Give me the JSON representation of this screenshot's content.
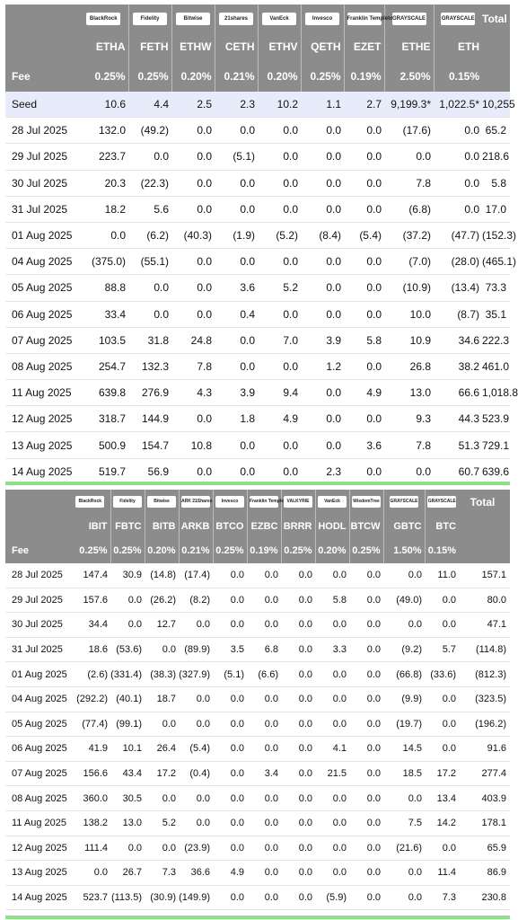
{
  "eth_table": {
    "issuers": [
      "BlackRock",
      "Fidelity",
      "Bitwise",
      "21shares",
      "VanEck",
      "Invesco",
      "Franklin Templeton",
      "GRAYSCALE",
      "GRAYSCALE"
    ],
    "total_label": "Total",
    "tickers": [
      "ETHA",
      "FETH",
      "ETHW",
      "CETH",
      "ETHV",
      "QETH",
      "EZET",
      "ETHE",
      "ETH"
    ],
    "fee_label": "Fee",
    "fees": [
      "0.25%",
      "0.25%",
      "0.20%",
      "0.21%",
      "0.20%",
      "0.25%",
      "0.19%",
      "2.50%",
      "0.15%"
    ],
    "rows": [
      {
        "date": "Seed",
        "values": [
          "10.6",
          "4.4",
          "2.5",
          "2.3",
          "10.2",
          "1.1",
          "2.7",
          "9,199.3*",
          "1,022.5*"
        ],
        "total": "10,255"
      },
      {
        "date": "28 Jul 2025",
        "values": [
          "132.0",
          "(49.2)",
          "0.0",
          "0.0",
          "0.0",
          "0.0",
          "0.0",
          "(17.6)",
          "0.0"
        ],
        "total": "65.2"
      },
      {
        "date": "29 Jul 2025",
        "values": [
          "223.7",
          "0.0",
          "0.0",
          "(5.1)",
          "0.0",
          "0.0",
          "0.0",
          "0.0",
          "0.0"
        ],
        "total": "218.6"
      },
      {
        "date": "30 Jul 2025",
        "values": [
          "20.3",
          "(22.3)",
          "0.0",
          "0.0",
          "0.0",
          "0.0",
          "0.0",
          "7.8",
          "0.0"
        ],
        "total": "5.8"
      },
      {
        "date": "31 Jul 2025",
        "values": [
          "18.2",
          "5.6",
          "0.0",
          "0.0",
          "0.0",
          "0.0",
          "0.0",
          "(6.8)",
          "0.0"
        ],
        "total": "17.0"
      },
      {
        "date": "01 Aug 2025",
        "values": [
          "0.0",
          "(6.2)",
          "(40.3)",
          "(1.9)",
          "(5.2)",
          "(8.4)",
          "(5.4)",
          "(37.2)",
          "(47.7)"
        ],
        "total": "(152.3)"
      },
      {
        "date": "04 Aug 2025",
        "values": [
          "(375.0)",
          "(55.1)",
          "0.0",
          "0.0",
          "0.0",
          "0.0",
          "0.0",
          "(7.0)",
          "(28.0)"
        ],
        "total": "(465.1)"
      },
      {
        "date": "05 Aug 2025",
        "values": [
          "88.8",
          "0.0",
          "0.0",
          "3.6",
          "5.2",
          "0.0",
          "0.0",
          "(10.9)",
          "(13.4)"
        ],
        "total": "73.3"
      },
      {
        "date": "06 Aug 2025",
        "values": [
          "33.4",
          "0.0",
          "0.0",
          "0.4",
          "0.0",
          "0.0",
          "0.0",
          "10.0",
          "(8.7)"
        ],
        "total": "35.1"
      },
      {
        "date": "07 Aug 2025",
        "values": [
          "103.5",
          "31.8",
          "24.8",
          "0.0",
          "7.0",
          "3.9",
          "5.8",
          "10.9",
          "34.6"
        ],
        "total": "222.3"
      },
      {
        "date": "08 Aug 2025",
        "values": [
          "254.7",
          "132.3",
          "7.8",
          "0.0",
          "0.0",
          "1.2",
          "0.0",
          "26.8",
          "38.2"
        ],
        "total": "461.0"
      },
      {
        "date": "11 Aug 2025",
        "values": [
          "639.8",
          "276.9",
          "4.3",
          "3.9",
          "9.4",
          "0.0",
          "4.9",
          "13.0",
          "66.6"
        ],
        "total": "1,018.8"
      },
      {
        "date": "12 Aug 2025",
        "values": [
          "318.7",
          "144.9",
          "0.0",
          "1.8",
          "4.9",
          "0.0",
          "0.0",
          "9.3",
          "44.3"
        ],
        "total": "523.9"
      },
      {
        "date": "13 Aug 2025",
        "values": [
          "500.9",
          "154.7",
          "10.8",
          "0.0",
          "0.0",
          "0.0",
          "3.6",
          "7.8",
          "51.3"
        ],
        "total": "729.1"
      },
      {
        "date": "14 Aug 2025",
        "values": [
          "519.7",
          "56.9",
          "0.0",
          "0.0",
          "0.0",
          "2.3",
          "0.0",
          "0.0",
          "60.7"
        ],
        "total": "639.6"
      }
    ]
  },
  "btc_table": {
    "issuers": [
      "BlackRock",
      "Fidelity",
      "Bitwise",
      "ARK 21Shares",
      "Invesco",
      "Franklin Templeton",
      "VALKYRIE",
      "VanEck",
      "WisdomTree",
      "GRAYSCALE",
      "GRAYSCALE"
    ],
    "total_label": "Total",
    "tickers": [
      "IBIT",
      "FBTC",
      "BITB",
      "ARKB",
      "BTCO",
      "EZBC",
      "BRRR",
      "HODL",
      "BTCW",
      "GBTC",
      "BTC"
    ],
    "fee_label": "Fee",
    "fees": [
      "0.25%",
      "0.25%",
      "0.20%",
      "0.21%",
      "0.25%",
      "0.19%",
      "0.25%",
      "0.20%",
      "0.25%",
      "1.50%",
      "0.15%"
    ],
    "rows": [
      {
        "date": "28 Jul 2025",
        "values": [
          "147.4",
          "30.9",
          "(14.8)",
          "(17.4)",
          "0.0",
          "0.0",
          "0.0",
          "0.0",
          "0.0",
          "0.0",
          "11.0"
        ],
        "total": "157.1"
      },
      {
        "date": "29 Jul 2025",
        "values": [
          "157.6",
          "0.0",
          "(26.2)",
          "(8.2)",
          "0.0",
          "0.0",
          "0.0",
          "5.8",
          "0.0",
          "(49.0)",
          "0.0"
        ],
        "total": "80.0"
      },
      {
        "date": "30 Jul 2025",
        "values": [
          "34.4",
          "0.0",
          "12.7",
          "0.0",
          "0.0",
          "0.0",
          "0.0",
          "0.0",
          "0.0",
          "0.0",
          "0.0"
        ],
        "total": "47.1"
      },
      {
        "date": "31 Jul 2025",
        "values": [
          "18.6",
          "(53.6)",
          "0.0",
          "(89.9)",
          "3.5",
          "6.8",
          "0.0",
          "3.3",
          "0.0",
          "(9.2)",
          "5.7"
        ],
        "total": "(114.8)"
      },
      {
        "date": "01 Aug 2025",
        "values": [
          "(2.6)",
          "(331.4)",
          "(38.3)",
          "(327.9)",
          "(5.1)",
          "(6.6)",
          "0.0",
          "0.0",
          "0.0",
          "(66.8)",
          "(33.6)"
        ],
        "total": "(812.3)"
      },
      {
        "date": "04 Aug 2025",
        "values": [
          "(292.2)",
          "(40.1)",
          "18.7",
          "0.0",
          "0.0",
          "0.0",
          "0.0",
          "0.0",
          "0.0",
          "(9.9)",
          "0.0"
        ],
        "total": "(323.5)"
      },
      {
        "date": "05 Aug 2025",
        "values": [
          "(77.4)",
          "(99.1)",
          "0.0",
          "0.0",
          "0.0",
          "0.0",
          "0.0",
          "0.0",
          "0.0",
          "(19.7)",
          "0.0"
        ],
        "total": "(196.2)"
      },
      {
        "date": "06 Aug 2025",
        "values": [
          "41.9",
          "10.1",
          "26.4",
          "(5.4)",
          "0.0",
          "0.0",
          "0.0",
          "4.1",
          "0.0",
          "14.5",
          "0.0"
        ],
        "total": "91.6"
      },
      {
        "date": "07 Aug 2025",
        "values": [
          "156.6",
          "43.4",
          "17.2",
          "(0.4)",
          "0.0",
          "3.4",
          "0.0",
          "21.5",
          "0.0",
          "18.5",
          "17.2"
        ],
        "total": "277.4"
      },
      {
        "date": "08 Aug 2025",
        "values": [
          "360.0",
          "30.5",
          "0.0",
          "0.0",
          "0.0",
          "0.0",
          "0.0",
          "0.0",
          "0.0",
          "0.0",
          "13.4"
        ],
        "total": "403.9"
      },
      {
        "date": "11 Aug 2025",
        "values": [
          "138.2",
          "13.0",
          "5.2",
          "0.0",
          "0.0",
          "0.0",
          "0.0",
          "0.0",
          "0.0",
          "7.5",
          "14.2"
        ],
        "total": "178.1"
      },
      {
        "date": "12 Aug 2025",
        "values": [
          "111.4",
          "0.0",
          "0.0",
          "(23.9)",
          "0.0",
          "0.0",
          "0.0",
          "0.0",
          "0.0",
          "(21.6)",
          "0.0"
        ],
        "total": "65.9"
      },
      {
        "date": "13 Aug 2025",
        "values": [
          "0.0",
          "26.7",
          "7.3",
          "36.6",
          "4.9",
          "0.0",
          "0.0",
          "0.0",
          "0.0",
          "0.0",
          "11.4"
        ],
        "total": "86.9"
      },
      {
        "date": "14 Aug 2025",
        "values": [
          "523.7",
          "(113.5)",
          "(30.9)",
          "(149.9)",
          "0.0",
          "0.0",
          "0.0",
          "(5.9)",
          "0.0",
          "0.0",
          "7.3"
        ],
        "total": "230.8"
      }
    ]
  },
  "colors": {
    "header_grey": "#8c8c8c",
    "negative": "#e0312b",
    "seed_row": "#e8ecfa",
    "total_bar": "#8fe08a"
  }
}
